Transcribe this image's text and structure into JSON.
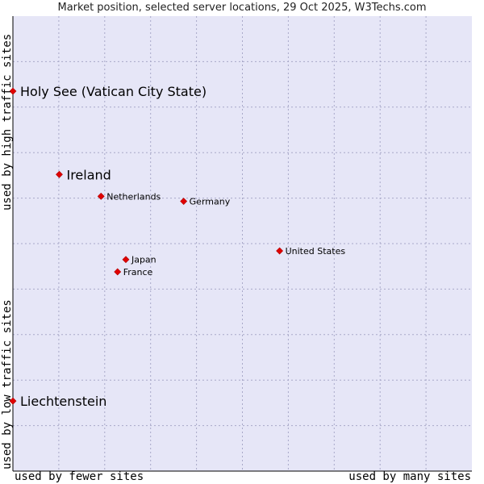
{
  "chart_data": {
    "type": "scatter",
    "title": "Market position, selected server locations, 29 Oct 2025, W3Techs.com",
    "xlabel_left": "used by fewer sites",
    "xlabel_right": "used by many sites",
    "ylabel_top": "used by high traffic sites",
    "ylabel_bottom": "used by low traffic sites",
    "xlim": [
      0,
      100
    ],
    "ylim": [
      0,
      100
    ],
    "grid": true,
    "points": [
      {
        "name": "Holy See (Vatican City State)",
        "x": 0.0,
        "y": 83.5,
        "label_size": "large"
      },
      {
        "name": "Ireland",
        "x": 10.1,
        "y": 65.2,
        "label_size": "large"
      },
      {
        "name": "Netherlands",
        "x": 19.2,
        "y": 60.4,
        "label_size": "small"
      },
      {
        "name": "Germany",
        "x": 37.2,
        "y": 59.3,
        "label_size": "small"
      },
      {
        "name": "United States",
        "x": 58.1,
        "y": 48.4,
        "label_size": "small"
      },
      {
        "name": "Japan",
        "x": 24.6,
        "y": 46.5,
        "label_size": "small"
      },
      {
        "name": "France",
        "x": 22.8,
        "y": 43.8,
        "label_size": "small"
      },
      {
        "name": "Liechtenstein",
        "x": 0.0,
        "y": 15.4,
        "label_size": "large"
      }
    ]
  },
  "colors": {
    "plot_background": "#e6e6f7",
    "grid": "#a8a8c8",
    "marker": "#e00000",
    "axis": "#000000"
  }
}
